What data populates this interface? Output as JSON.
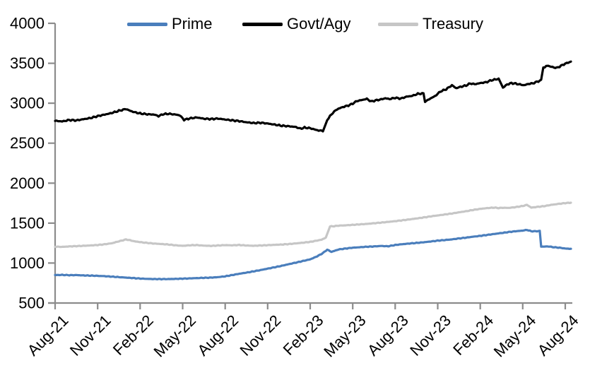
{
  "page": {
    "background": "#ffffff"
  },
  "chart_data": {
    "type": "line",
    "legend_position": "top",
    "grid": false,
    "axis_color": "#8c8c8c",
    "text_color": "#000000",
    "ylim": [
      500,
      4000
    ],
    "y_ticks": [
      4000,
      3500,
      3000,
      2500,
      2000,
      1500,
      1000,
      500
    ],
    "x_tick_labels": [
      "Aug-21",
      "Nov-21",
      "Feb-22",
      "May-22",
      "Aug-22",
      "Nov-22",
      "Feb-23",
      "May-23",
      "Aug-23",
      "Nov-23",
      "Feb-24",
      "May-24",
      "Aug-24"
    ],
    "x_unit": "months since Aug-21 (0 = Aug-21, 36 = Aug-24)",
    "x_domain": [
      0,
      36.4
    ],
    "series": [
      {
        "name": "Prime",
        "color": "#4a7ebc",
        "points": [
          [
            0,
            850
          ],
          [
            0.5,
            852
          ],
          [
            1,
            848
          ],
          [
            1.5,
            850
          ],
          [
            2,
            845
          ],
          [
            2.5,
            843
          ],
          [
            3,
            840
          ],
          [
            3.5,
            836
          ],
          [
            4,
            830
          ],
          [
            4.5,
            824
          ],
          [
            5,
            818
          ],
          [
            5.5,
            812
          ],
          [
            6,
            806
          ],
          [
            6.5,
            802
          ],
          [
            7,
            800
          ],
          [
            7.5,
            799
          ],
          [
            8,
            800
          ],
          [
            8.5,
            802
          ],
          [
            9,
            805
          ],
          [
            9.5,
            808
          ],
          [
            10,
            812
          ],
          [
            10.5,
            815
          ],
          [
            11,
            818
          ],
          [
            11.5,
            824
          ],
          [
            12,
            834
          ],
          [
            12.5,
            850
          ],
          [
            13,
            866
          ],
          [
            13.5,
            880
          ],
          [
            14,
            896
          ],
          [
            14.5,
            912
          ],
          [
            15,
            930
          ],
          [
            15.5,
            948
          ],
          [
            16,
            966
          ],
          [
            16.5,
            986
          ],
          [
            17,
            1006
          ],
          [
            17.5,
            1026
          ],
          [
            18,
            1046
          ],
          [
            18.5,
            1085
          ],
          [
            18.9,
            1125
          ],
          [
            19.2,
            1168
          ],
          [
            19.5,
            1140
          ],
          [
            19.8,
            1158
          ],
          [
            20,
            1170
          ],
          [
            20.5,
            1182
          ],
          [
            21,
            1192
          ],
          [
            21.5,
            1198
          ],
          [
            22,
            1204
          ],
          [
            22.5,
            1208
          ],
          [
            23,
            1214
          ],
          [
            23.5,
            1210
          ],
          [
            24,
            1226
          ],
          [
            24.5,
            1236
          ],
          [
            25,
            1244
          ],
          [
            25.5,
            1252
          ],
          [
            26,
            1260
          ],
          [
            26.5,
            1270
          ],
          [
            27,
            1280
          ],
          [
            27.5,
            1288
          ],
          [
            28,
            1296
          ],
          [
            28.5,
            1308
          ],
          [
            29,
            1318
          ],
          [
            29.5,
            1330
          ],
          [
            30,
            1340
          ],
          [
            30.5,
            1352
          ],
          [
            31,
            1364
          ],
          [
            31.5,
            1376
          ],
          [
            32,
            1388
          ],
          [
            32.5,
            1398
          ],
          [
            33,
            1406
          ],
          [
            33.3,
            1415
          ],
          [
            33.6,
            1398
          ],
          [
            34,
            1398
          ],
          [
            34.2,
            1402
          ],
          [
            34.3,
            1205
          ],
          [
            34.8,
            1208
          ],
          [
            35.2,
            1198
          ],
          [
            35.6,
            1192
          ],
          [
            36,
            1182
          ],
          [
            36.4,
            1178
          ]
        ]
      },
      {
        "name": "Govt/Agy",
        "color": "#000000",
        "points": [
          [
            0,
            2780
          ],
          [
            0.5,
            2772
          ],
          [
            1,
            2790
          ],
          [
            1.5,
            2785
          ],
          [
            2,
            2800
          ],
          [
            2.5,
            2815
          ],
          [
            3,
            2838
          ],
          [
            3.5,
            2858
          ],
          [
            4,
            2878
          ],
          [
            4.5,
            2905
          ],
          [
            5,
            2928
          ],
          [
            5.3,
            2905
          ],
          [
            5.6,
            2888
          ],
          [
            6,
            2872
          ],
          [
            6.5,
            2862
          ],
          [
            7,
            2858
          ],
          [
            7.3,
            2838
          ],
          [
            7.6,
            2862
          ],
          [
            8,
            2868
          ],
          [
            8.5,
            2858
          ],
          [
            8.8,
            2848
          ],
          [
            9.1,
            2792
          ],
          [
            9.5,
            2810
          ],
          [
            10,
            2822
          ],
          [
            10.5,
            2806
          ],
          [
            11,
            2802
          ],
          [
            11.5,
            2808
          ],
          [
            12,
            2796
          ],
          [
            12.5,
            2786
          ],
          [
            13,
            2776
          ],
          [
            13.5,
            2762
          ],
          [
            14,
            2752
          ],
          [
            14.5,
            2756
          ],
          [
            15,
            2746
          ],
          [
            15.5,
            2732
          ],
          [
            16,
            2718
          ],
          [
            16.5,
            2712
          ],
          [
            17,
            2702
          ],
          [
            17.3,
            2682
          ],
          [
            17.6,
            2695
          ],
          [
            18,
            2688
          ],
          [
            18.3,
            2672
          ],
          [
            18.6,
            2658
          ],
          [
            18.9,
            2655
          ],
          [
            19.2,
            2788
          ],
          [
            19.5,
            2862
          ],
          [
            19.8,
            2912
          ],
          [
            20,
            2932
          ],
          [
            20.3,
            2952
          ],
          [
            20.7,
            2972
          ],
          [
            21,
            2995
          ],
          [
            21.3,
            3028
          ],
          [
            21.6,
            3038
          ],
          [
            22,
            3055
          ],
          [
            22.3,
            3022
          ],
          [
            22.6,
            3035
          ],
          [
            23,
            3048
          ],
          [
            23.3,
            3062
          ],
          [
            23.6,
            3052
          ],
          [
            24,
            3068
          ],
          [
            24.4,
            3058
          ],
          [
            24.8,
            3082
          ],
          [
            25.2,
            3092
          ],
          [
            25.6,
            3118
          ],
          [
            26,
            3122
          ],
          [
            26.1,
            3015
          ],
          [
            26.4,
            3052
          ],
          [
            26.8,
            3088
          ],
          [
            27.2,
            3148
          ],
          [
            27.6,
            3175
          ],
          [
            28,
            3225
          ],
          [
            28.3,
            3188
          ],
          [
            28.6,
            3205
          ],
          [
            29,
            3222
          ],
          [
            29.3,
            3248
          ],
          [
            29.6,
            3238
          ],
          [
            30,
            3252
          ],
          [
            30.4,
            3262
          ],
          [
            30.8,
            3288
          ],
          [
            31,
            3295
          ],
          [
            31.3,
            3305
          ],
          [
            31.6,
            3195
          ],
          [
            31.9,
            3235
          ],
          [
            32.2,
            3252
          ],
          [
            32.5,
            3245
          ],
          [
            32.8,
            3235
          ],
          [
            33.1,
            3225
          ],
          [
            33.4,
            3242
          ],
          [
            33.7,
            3248
          ],
          [
            34,
            3268
          ],
          [
            34.3,
            3288
          ],
          [
            34.45,
            3448
          ],
          [
            34.8,
            3468
          ],
          [
            35.1,
            3452
          ],
          [
            35.4,
            3442
          ],
          [
            35.7,
            3468
          ],
          [
            36,
            3495
          ],
          [
            36.4,
            3520
          ]
        ]
      },
      {
        "name": "Treasury",
        "color": "#c6c6c6",
        "points": [
          [
            0,
            1205
          ],
          [
            0.5,
            1202
          ],
          [
            1,
            1208
          ],
          [
            1.5,
            1212
          ],
          [
            2,
            1216
          ],
          [
            2.5,
            1220
          ],
          [
            3,
            1226
          ],
          [
            3.5,
            1235
          ],
          [
            4,
            1248
          ],
          [
            4.5,
            1272
          ],
          [
            5,
            1295
          ],
          [
            5.3,
            1285
          ],
          [
            5.6,
            1272
          ],
          [
            6,
            1262
          ],
          [
            6.5,
            1252
          ],
          [
            7,
            1244
          ],
          [
            7.5,
            1238
          ],
          [
            8,
            1232
          ],
          [
            8.5,
            1222
          ],
          [
            9,
            1216
          ],
          [
            9.5,
            1222
          ],
          [
            10,
            1225
          ],
          [
            10.5,
            1218
          ],
          [
            11,
            1215
          ],
          [
            11.5,
            1220
          ],
          [
            12,
            1224
          ],
          [
            12.5,
            1222
          ],
          [
            13,
            1226
          ],
          [
            13.5,
            1220
          ],
          [
            14,
            1216
          ],
          [
            14.5,
            1220
          ],
          [
            15,
            1224
          ],
          [
            15.5,
            1228
          ],
          [
            16,
            1232
          ],
          [
            16.5,
            1238
          ],
          [
            17,
            1246
          ],
          [
            17.5,
            1255
          ],
          [
            18,
            1265
          ],
          [
            18.4,
            1278
          ],
          [
            18.8,
            1292
          ],
          [
            19.1,
            1318
          ],
          [
            19.4,
            1458
          ],
          [
            19.7,
            1462
          ],
          [
            20,
            1468
          ],
          [
            20.5,
            1472
          ],
          [
            21,
            1478
          ],
          [
            21.5,
            1484
          ],
          [
            22,
            1490
          ],
          [
            22.5,
            1498
          ],
          [
            23,
            1506
          ],
          [
            23.5,
            1515
          ],
          [
            24,
            1524
          ],
          [
            24.5,
            1535
          ],
          [
            25,
            1546
          ],
          [
            25.5,
            1558
          ],
          [
            26,
            1570
          ],
          [
            26.5,
            1584
          ],
          [
            27,
            1596
          ],
          [
            27.5,
            1608
          ],
          [
            28,
            1620
          ],
          [
            28.5,
            1635
          ],
          [
            29,
            1648
          ],
          [
            29.5,
            1665
          ],
          [
            30,
            1678
          ],
          [
            30.5,
            1688
          ],
          [
            31,
            1694
          ],
          [
            31.3,
            1688
          ],
          [
            31.6,
            1692
          ],
          [
            32,
            1690
          ],
          [
            32.5,
            1700
          ],
          [
            33,
            1714
          ],
          [
            33.3,
            1728
          ],
          [
            33.6,
            1694
          ],
          [
            34,
            1702
          ],
          [
            34.5,
            1712
          ],
          [
            35,
            1728
          ],
          [
            35.5,
            1740
          ],
          [
            36,
            1750
          ],
          [
            36.4,
            1756
          ]
        ]
      }
    ]
  }
}
